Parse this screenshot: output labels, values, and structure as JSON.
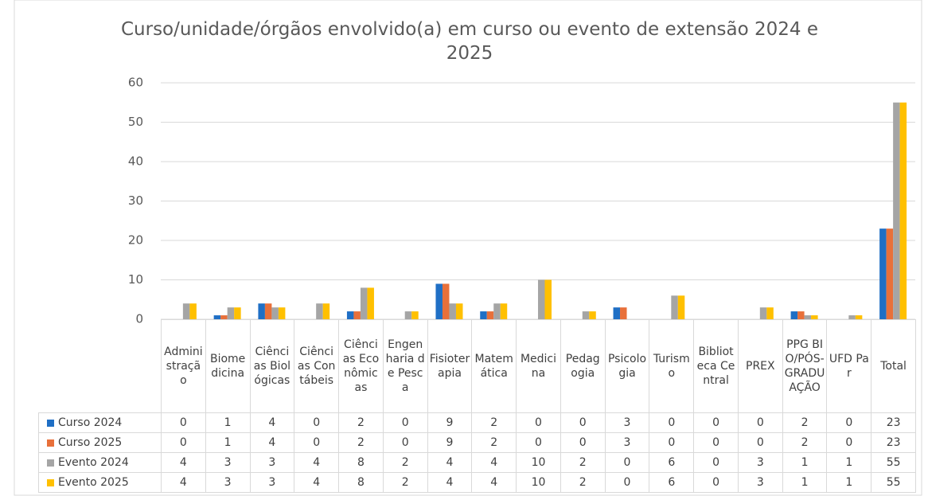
{
  "chart_data": {
    "type": "bar",
    "title": "Curso/unidade/órgãos envolvido(a) em curso ou evento de extensão 2024 e 2025",
    "categories": [
      "Administração",
      "Biomedicina",
      "Ciências Biológicas",
      "Ciências Contábeis",
      "Ciências Econômicas",
      "Engenharia de Pesca",
      "Fisioterapia",
      "Matemática",
      "Medicina",
      "Pedagogia",
      "Psicologia",
      "Turismo",
      "Biblioteca Central",
      "PREX",
      "PPG BIO/PÓS-GRADUAÇÃO",
      "UFD Par",
      "Total"
    ],
    "series": [
      {
        "name": "Curso 2024",
        "color": "#1f6fc5",
        "values": [
          0,
          1,
          4,
          0,
          2,
          0,
          9,
          2,
          0,
          0,
          3,
          0,
          0,
          0,
          2,
          0,
          23
        ]
      },
      {
        "name": "Curso 2025",
        "color": "#e8703a",
        "values": [
          0,
          1,
          4,
          0,
          2,
          0,
          9,
          2,
          0,
          0,
          3,
          0,
          0,
          0,
          2,
          0,
          23
        ]
      },
      {
        "name": "Evento 2024",
        "color": "#a5a5a5",
        "values": [
          4,
          3,
          3,
          4,
          8,
          2,
          4,
          4,
          10,
          2,
          0,
          6,
          0,
          3,
          1,
          1,
          55
        ]
      },
      {
        "name": "Evento 2025",
        "color": "#ffc000",
        "values": [
          4,
          3,
          3,
          4,
          8,
          2,
          4,
          4,
          10,
          2,
          0,
          6,
          0,
          3,
          1,
          1,
          55
        ]
      }
    ],
    "ylim": [
      0,
      60
    ],
    "yticks": [
      0,
      10,
      20,
      30,
      40,
      50,
      60
    ],
    "grid": true
  }
}
